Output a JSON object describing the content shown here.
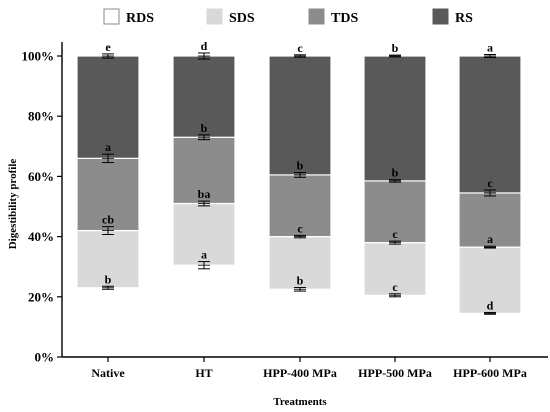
{
  "chart_data": {
    "type": "bar",
    "stacked": true,
    "xlabel": "Treatments",
    "ylabel": "Digestibility profile",
    "ylim": [
      0,
      100
    ],
    "yticks": [
      "0%",
      "20%",
      "40%",
      "60%",
      "80%",
      "100%"
    ],
    "grid": false,
    "legend_position": "top",
    "categories": [
      "Native",
      "HT",
      "HPP-400 MPa",
      "HPP-500 MPa",
      "HPP-600 MPa"
    ],
    "series": [
      {
        "name": "RDS",
        "color": "#ffffff",
        "values": [
          23,
          30.5,
          22.5,
          20.5,
          14.5
        ],
        "errors": [
          0.5,
          1.2,
          0.6,
          0.5,
          0.3
        ],
        "labels": [
          "b",
          "a",
          "b",
          "c",
          "d"
        ]
      },
      {
        "name": "SDS",
        "color": "#d9d9d9",
        "values": [
          19,
          20.5,
          17.5,
          17.5,
          22
        ],
        "errors": [
          1.3,
          0.8,
          0.4,
          0.5,
          0.3
        ],
        "labels": [
          "cb",
          "ba",
          "c",
          "c",
          "a"
        ]
      },
      {
        "name": "TDS",
        "color": "#8c8c8c",
        "values": [
          24,
          22,
          20.5,
          20.5,
          18
        ],
        "errors": [
          1.4,
          0.8,
          0.8,
          0.4,
          1.0
        ],
        "labels": [
          "a",
          "b",
          "b",
          "b",
          "c"
        ]
      },
      {
        "name": "RS",
        "color": "#595959",
        "values": [
          34,
          27,
          39.5,
          41.5,
          45.5
        ],
        "errors": [
          0.7,
          1.0,
          0.4,
          0.3,
          0.5
        ],
        "labels": [
          "e",
          "d",
          "c",
          "b",
          "a"
        ]
      }
    ]
  }
}
